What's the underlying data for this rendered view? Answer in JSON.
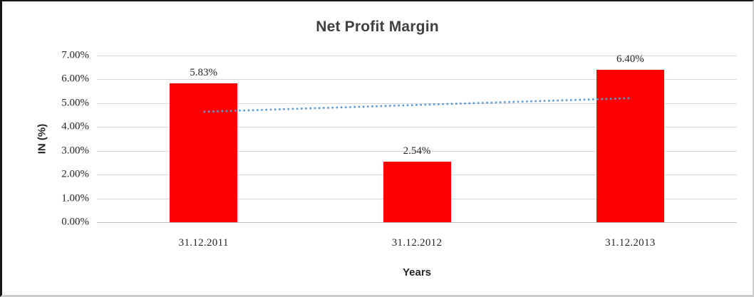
{
  "chart_data": {
    "type": "bar",
    "title": "Net Profit Margin",
    "categories": [
      "31.12.2011",
      "31.12.2012",
      "31.12.2013"
    ],
    "values": [
      5.83,
      2.54,
      6.4
    ],
    "data_labels": [
      "5.83%",
      "2.54%",
      "6.40%"
    ],
    "xlabel": "Years",
    "ylabel": "IN (%)",
    "ylim": [
      0,
      7
    ],
    "y_tick_labels": [
      "0.00%",
      "1.00%",
      "2.00%",
      "3.00%",
      "4.00%",
      "5.00%",
      "6.00%",
      "7.00%"
    ],
    "grid": true,
    "legend": "none",
    "bar_color": "#FF0000",
    "gridline_color": "#D9D9D9",
    "axis_line_color": "#C3C3C3",
    "title_color": "#404040",
    "tick_color": "#262626",
    "trendline": {
      "type": "linear",
      "style": "dotted",
      "color": "#5B9BD5",
      "start_value": 4.64,
      "end_value": 5.21
    }
  }
}
